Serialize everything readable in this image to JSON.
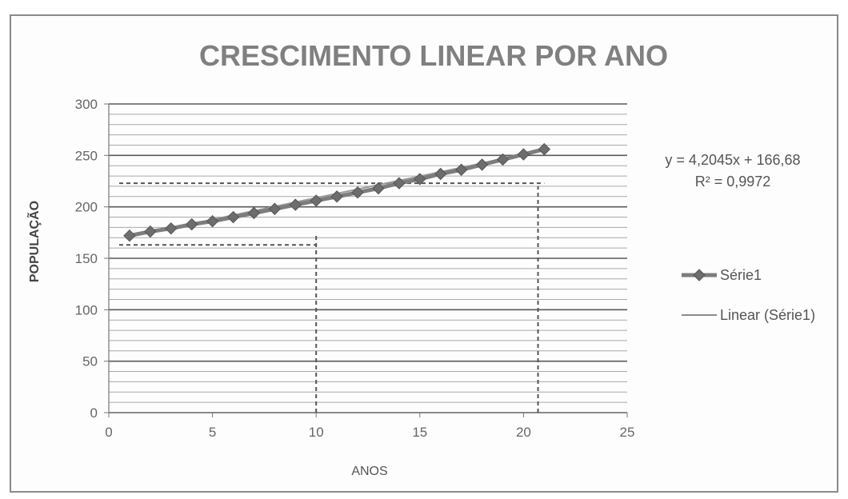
{
  "chart_data": {
    "type": "line",
    "title": "CRESCIMENTO LINEAR POR ANO",
    "xlabel": "ANOS",
    "ylabel": "POPULAÇÃO",
    "xlim": [
      0,
      25
    ],
    "ylim": [
      0,
      300
    ],
    "xticks": [
      "0",
      "5",
      "10",
      "15",
      "20",
      "25"
    ],
    "yticks": [
      "0",
      "50",
      "100",
      "150",
      "200",
      "250",
      "300"
    ],
    "grid": true,
    "legend_position": "right",
    "series": [
      {
        "name": "Série1",
        "color": "#7d7d7d",
        "marker": "diamond",
        "x": [
          1,
          2,
          3,
          4,
          5,
          6,
          7,
          8,
          9,
          10,
          11,
          12,
          13,
          14,
          15,
          16,
          17,
          18,
          19,
          20,
          21
        ],
        "y": [
          172,
          176,
          179,
          183,
          186,
          190,
          194,
          198,
          202,
          206,
          210,
          214,
          218,
          223,
          227,
          232,
          236,
          241,
          246,
          251,
          256
        ]
      }
    ],
    "trendline": {
      "name": "Linear (Série1)",
      "color": "#9a9a9a",
      "slope": 4.2045,
      "intercept": 166.68
    },
    "equation_label": "y = 4,2045x + 166,68",
    "r2_label": "R² = 0,9972",
    "annotations": [
      {
        "kind": "horizontal",
        "y": 163,
        "x_from": 0.5,
        "x_to": 10
      },
      {
        "kind": "vertical",
        "x": 10,
        "y_from": 0,
        "y_to": 175
      },
      {
        "kind": "horizontal",
        "y": 223,
        "x_from": 0.5,
        "x_to": 21
      },
      {
        "kind": "vertical",
        "x": 20.7,
        "y_from": 0,
        "y_to": 220
      }
    ]
  }
}
